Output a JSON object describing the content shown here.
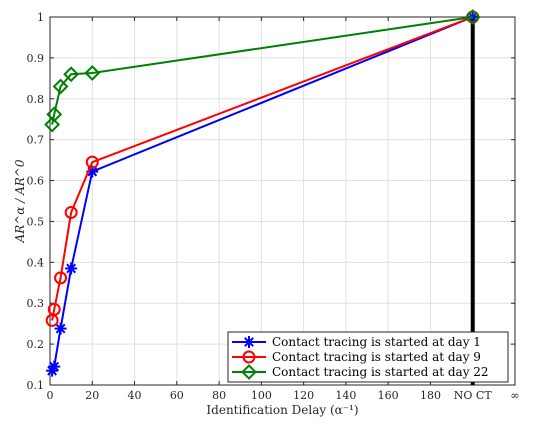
{
  "chart_data": {
    "type": "line",
    "xlabel": "Identification Delay (α⁻¹)",
    "ylabel": "AR^α / AR^0",
    "xlim": [
      0,
      220
    ],
    "ylim": [
      0.1,
      1.0
    ],
    "x_ticks": [
      "0",
      "20",
      "40",
      "60",
      "80",
      "100",
      "120",
      "140",
      "160",
      "180",
      "NO CT",
      "∞"
    ],
    "y_ticks": [
      "0.1",
      "0.2",
      "0.3",
      "0.4",
      "0.5",
      "0.6",
      "0.7",
      "0.8",
      "0.9",
      "1"
    ],
    "grid": true,
    "legend_position": "bottom-right",
    "no_ct_x": 200,
    "series": [
      {
        "name": "Contact tracing is started at day 1",
        "color": "#0000ff",
        "marker": "asterisk",
        "x": [
          1,
          2,
          5,
          10,
          20,
          200
        ],
        "y": [
          0.135,
          0.145,
          0.238,
          0.385,
          0.622,
          1.0
        ]
      },
      {
        "name": "Contact tracing is started at day 9",
        "color": "#ff0000",
        "marker": "circle",
        "x": [
          1,
          2,
          5,
          10,
          20,
          200
        ],
        "y": [
          0.258,
          0.285,
          0.362,
          0.522,
          0.645,
          1.0
        ]
      },
      {
        "name": "Contact tracing is started at day 22",
        "color": "#008000",
        "marker": "diamond",
        "x": [
          1,
          2,
          5,
          10,
          20,
          200
        ],
        "y": [
          0.737,
          0.762,
          0.83,
          0.86,
          0.863,
          1.0
        ]
      }
    ]
  }
}
